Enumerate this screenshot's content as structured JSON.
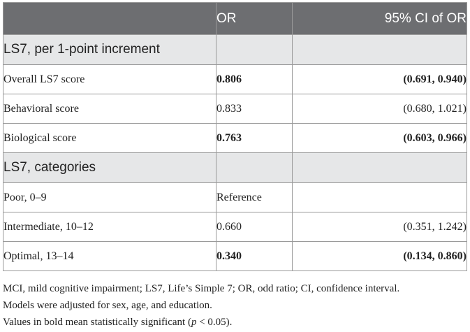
{
  "header": {
    "col1": "",
    "col2": "OR",
    "col3": "95% CI of OR"
  },
  "sections": [
    {
      "title": "LS7, per 1-point increment",
      "rows": [
        {
          "label": "Overall LS7 score",
          "or": "0.806",
          "ci": "(0.691, 0.940)",
          "significant": true
        },
        {
          "label": "Behavioral score",
          "or": "0.833",
          "ci": "(0.680, 1.021)",
          "significant": false
        },
        {
          "label": "Biological score",
          "or": "0.763",
          "ci": "(0.603, 0.966)",
          "significant": true
        }
      ]
    },
    {
      "title": "LS7, categories",
      "rows": [
        {
          "label": "Poor, 0–9",
          "or": "Reference",
          "ci": "",
          "significant": false
        },
        {
          "label": "Intermediate, 10–12",
          "or": "0.660",
          "ci": "(0.351, 1.242)",
          "significant": false
        },
        {
          "label": "Optimal, 13–14",
          "or": "0.340",
          "ci": "(0.134, 0.860)",
          "significant": true
        }
      ]
    }
  ],
  "notes": {
    "abbreviations": "MCI, mild cognitive impairment; LS7, Life’s Simple 7; OR, odd ratio; CI, confidence interval.",
    "adjustment": "Models were adjusted for sex, age, and education.",
    "bold_prefix": "Values in bold mean statistically significant (",
    "bold_p": "p",
    "bold_suffix": " < 0.05)."
  }
}
